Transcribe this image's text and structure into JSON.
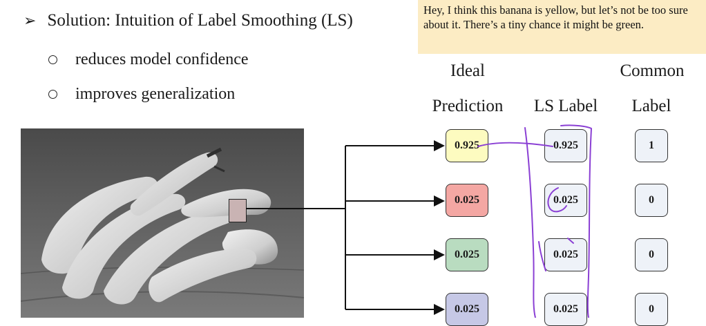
{
  "slide": {
    "title": "Solution: Intuition of Label Smoothing (LS)",
    "bullets": [
      "reduces model confidence",
      "improves generalization"
    ],
    "callout": "Hey, I think this banana is yellow, but let’s not be too sure about it. There’s a tiny chance it might be green."
  },
  "columns": {
    "ideal": [
      "Ideal",
      "Prediction"
    ],
    "ls": "LS Label",
    "common": [
      "Common",
      "Label"
    ]
  },
  "rows": [
    {
      "ideal": "0.925",
      "ls": "0.925",
      "common": "1",
      "ideal_color": "#fdfbc0"
    },
    {
      "ideal": "0.025",
      "ls": "0.025",
      "common": "0",
      "ideal_color": "#f4a7a3"
    },
    {
      "ideal": "0.025",
      "ls": "0.025",
      "common": "0",
      "ideal_color": "#b9dcc0"
    },
    {
      "ideal": "0.025",
      "ls": "0.025",
      "common": "0",
      "ideal_color": "#c6c8e6"
    }
  ],
  "colors": {
    "callout_bg": "#fcecc4",
    "annotation_pen": "#8a3fd4"
  },
  "icons": {
    "bullet": "arrowhead-bullet",
    "sub_bullet": "hollow-circle-bullet"
  }
}
